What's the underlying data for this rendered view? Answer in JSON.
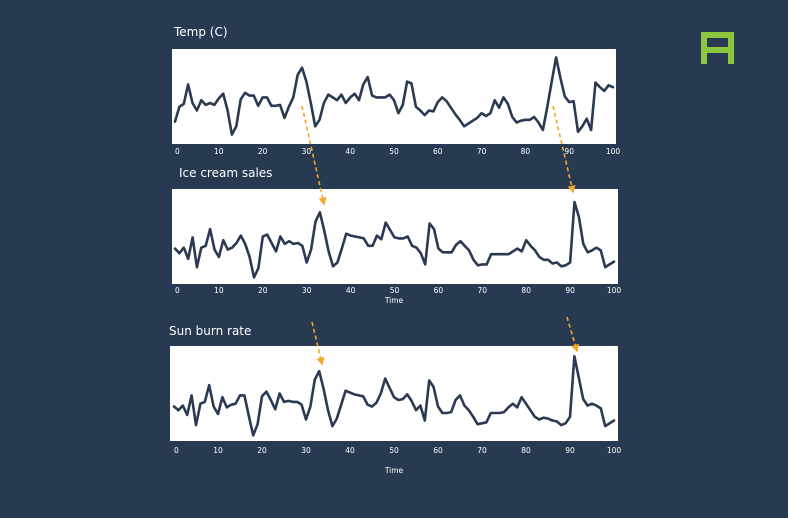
{
  "colors": {
    "background": "#283a52",
    "panel": "#ffffff",
    "line": "#2a3a52",
    "arrow": "#f5a623",
    "logo": "#8cc63f"
  },
  "logo_icon": "brand-logo-icon",
  "chart_data": [
    {
      "type": "line",
      "title": "Temp (C)",
      "xlabel": "",
      "ylabel": "",
      "xlim": [
        0,
        100
      ],
      "ylim": [
        0,
        10
      ],
      "x_ticks": [
        0,
        10,
        20,
        30,
        40,
        50,
        60,
        70,
        80,
        90,
        100
      ],
      "grid": false,
      "series": [
        {
          "x": [
            0,
            1,
            2,
            3,
            4,
            5,
            6,
            7,
            8,
            9,
            10,
            11,
            12,
            13,
            14,
            15,
            16,
            17,
            18,
            19,
            20,
            21,
            22,
            23,
            24,
            25,
            26,
            27,
            28,
            29,
            30,
            31,
            32,
            33,
            34,
            35,
            36,
            37,
            38,
            39,
            40,
            41,
            42,
            43,
            44,
            45,
            46,
            47,
            48,
            49,
            50,
            51,
            52,
            53,
            54,
            55,
            56,
            57,
            58,
            59,
            60,
            61,
            62,
            63,
            64,
            65,
            66,
            67,
            68,
            69,
            70,
            71,
            72,
            73,
            74,
            75,
            76,
            77,
            78,
            79,
            80,
            81,
            82,
            83,
            84,
            85,
            86,
            87,
            88,
            89,
            90,
            91,
            92,
            93,
            94,
            95,
            96,
            97,
            98,
            99,
            100
          ],
          "y": [
            2.3,
            3.9,
            4.2,
            6.3,
            4.3,
            3.5,
            4.6,
            4.1,
            4.3,
            4.1,
            4.8,
            5.3,
            3.5,
            0.9,
            1.8,
            4.7,
            5.4,
            5.1,
            5.1,
            4,
            4.9,
            4.9,
            4,
            4,
            4.1,
            2.7,
            3.9,
            4.9,
            7.3,
            8.1,
            6.6,
            4.3,
            1.8,
            2.5,
            4.3,
            5.2,
            4.9,
            4.6,
            5.2,
            4.3,
            4.9,
            5.3,
            4.6,
            6.3,
            7.1,
            5.1,
            4.9,
            4.9,
            4.9,
            5.2,
            4.6,
            3.2,
            4.1,
            6.6,
            6.4,
            3.9,
            3.5,
            3,
            3.5,
            3.4,
            4.4,
            4.9,
            4.5,
            3.8,
            3.1,
            2.5,
            1.8,
            2.1,
            2.4,
            2.7,
            3.2,
            2.9,
            3.2,
            4.6,
            3.8,
            4.9,
            4.2,
            2.8,
            2.2,
            2.4,
            2.5,
            2.5,
            2.8,
            2.2,
            1.4,
            3.9,
            6.6,
            9.2,
            7,
            5,
            4.4,
            4.5,
            1.2,
            1.8,
            2.6,
            1.4,
            6.5,
            6,
            5.6,
            6.2,
            6
          ]
        }
      ]
    },
    {
      "type": "line",
      "title": "Ice cream sales",
      "xlabel": "Time",
      "ylabel": "",
      "xlim": [
        0,
        100
      ],
      "ylim": [
        0,
        10
      ],
      "x_ticks": [
        0,
        10,
        20,
        30,
        40,
        50,
        60,
        70,
        80,
        90,
        100
      ],
      "grid": false,
      "series": [
        {
          "x": [
            0,
            1,
            2,
            3,
            4,
            5,
            6,
            7,
            8,
            9,
            10,
            11,
            12,
            13,
            14,
            15,
            16,
            17,
            18,
            19,
            20,
            21,
            22,
            23,
            24,
            25,
            26,
            27,
            28,
            29,
            30,
            31,
            32,
            33,
            34,
            35,
            36,
            37,
            38,
            39,
            40,
            41,
            42,
            43,
            44,
            45,
            46,
            47,
            48,
            49,
            50,
            51,
            52,
            53,
            54,
            55,
            56,
            57,
            58,
            59,
            60,
            61,
            62,
            63,
            64,
            65,
            66,
            67,
            68,
            69,
            70,
            71,
            72,
            73,
            74,
            75,
            76,
            77,
            78,
            79,
            80,
            81,
            82,
            83,
            84,
            85,
            86,
            87,
            88,
            89,
            90,
            91,
            92,
            93,
            94,
            95,
            96,
            97,
            98,
            99,
            100
          ],
          "y": [
            3.7,
            3.2,
            3.8,
            2.6,
            4.9,
            1.7,
            3.8,
            4,
            5.8,
            3.6,
            2.8,
            4.6,
            3.6,
            3.8,
            4.3,
            5.1,
            4.2,
            2.8,
            0.6,
            1.6,
            5,
            5.2,
            4.3,
            3.4,
            5,
            4.2,
            4.5,
            4.2,
            4.3,
            4,
            2.2,
            3.6,
            6.6,
            7.6,
            5.6,
            3.4,
            1.8,
            2.2,
            3.7,
            5.3,
            5.1,
            5,
            4.9,
            4.8,
            4,
            4,
            5.1,
            4.7,
            6.5,
            5.7,
            4.9,
            4.8,
            4.8,
            5,
            4,
            3.8,
            3.2,
            2,
            6.4,
            5.8,
            3.7,
            3.3,
            3.3,
            3.3,
            4.1,
            4.5,
            4,
            3.5,
            2.5,
            1.9,
            2,
            2,
            3.1,
            3.1,
            3.1,
            3.1,
            3.1,
            3.4,
            3.7,
            3.4,
            4.6,
            4,
            3.5,
            2.8,
            2.5,
            2.5,
            2.1,
            2.2,
            1.8,
            1.9,
            2.2,
            8.7,
            7.1,
            4.2,
            3.3,
            3.5,
            3.8,
            3.5,
            1.7,
            2,
            2.3
          ]
        }
      ]
    },
    {
      "type": "line",
      "title": "Sun burn rate",
      "xlabel": "Time",
      "ylabel": "",
      "xlim": [
        0,
        100
      ],
      "ylim": [
        0,
        10
      ],
      "x_ticks": [
        0,
        10,
        20,
        30,
        40,
        50,
        60,
        70,
        80,
        90,
        100
      ],
      "grid": false,
      "series": [
        {
          "x": [
            0,
            1,
            2,
            3,
            4,
            5,
            6,
            7,
            8,
            9,
            10,
            11,
            12,
            13,
            14,
            15,
            16,
            17,
            18,
            19,
            20,
            21,
            22,
            23,
            24,
            25,
            26,
            27,
            28,
            29,
            30,
            31,
            32,
            33,
            34,
            35,
            36,
            37,
            38,
            39,
            40,
            41,
            42,
            43,
            44,
            45,
            46,
            47,
            48,
            49,
            50,
            51,
            52,
            53,
            54,
            55,
            56,
            57,
            58,
            59,
            60,
            61,
            62,
            63,
            64,
            65,
            66,
            67,
            68,
            69,
            70,
            71,
            72,
            73,
            74,
            75,
            76,
            77,
            78,
            79,
            80,
            81,
            82,
            83,
            84,
            85,
            86,
            87,
            88,
            89,
            90,
            91,
            92,
            93,
            94,
            95,
            96,
            97,
            98,
            99,
            100
          ],
          "y": [
            3.6,
            3.2,
            3.7,
            2.7,
            4.8,
            1.6,
            3.9,
            4.1,
            5.9,
            3.6,
            2.8,
            4.6,
            3.5,
            3.8,
            3.9,
            4.8,
            4.8,
            2.6,
            0.5,
            1.7,
            4.7,
            5.2,
            4.3,
            3.3,
            5,
            4.1,
            4.2,
            4.1,
            4.1,
            3.8,
            2.2,
            3.6,
            6.5,
            7.4,
            5.5,
            3.2,
            1.5,
            2.3,
            3.8,
            5.3,
            5.1,
            4.9,
            4.8,
            4.7,
            3.8,
            3.6,
            4,
            5,
            6.6,
            5.6,
            4.6,
            4.3,
            4.4,
            4.9,
            4.2,
            3.2,
            3.7,
            2.1,
            6.4,
            5.7,
            3.6,
            2.9,
            2.9,
            3,
            4.3,
            4.8,
            3.7,
            3.2,
            2.5,
            1.7,
            1.8,
            1.9,
            2.9,
            2.9,
            2.9,
            3,
            3.5,
            3.9,
            3.5,
            4.6,
            3.9,
            3.2,
            2.5,
            2.2,
            2.4,
            2.3,
            2.1,
            2,
            1.6,
            1.8,
            2.5,
            9,
            6.7,
            4.4,
            3.7,
            3.9,
            3.7,
            3.4,
            1.5,
            1.8,
            2.1
          ]
        }
      ]
    }
  ]
}
